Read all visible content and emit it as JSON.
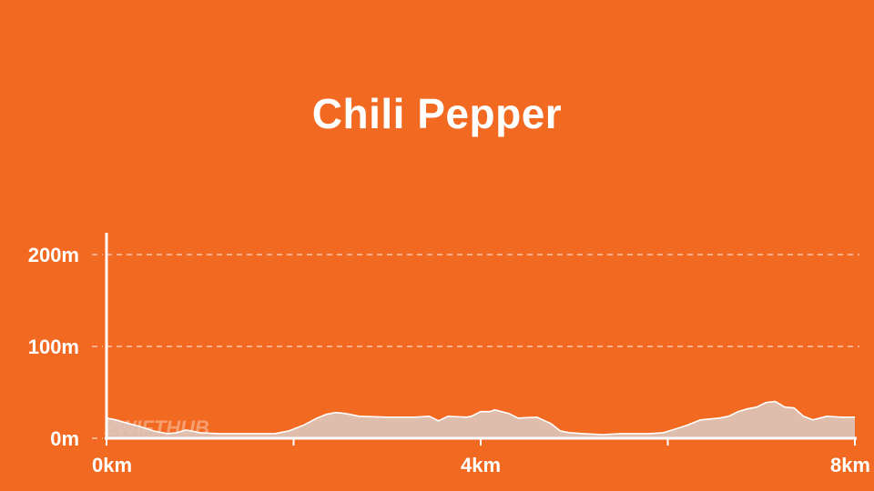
{
  "title": "Chili Pepper",
  "watermark": "ZWIFTHUB",
  "colors": {
    "background": "#f26a22",
    "axis": "#ffffff",
    "grid": "#ffd9c4",
    "area_fill": "#ddc4b9",
    "area_stroke": "#ffffff"
  },
  "chart_data": {
    "type": "area",
    "title": "Chili Pepper",
    "xlabel": "",
    "ylabel": "",
    "x_unit": "km",
    "y_unit": "m",
    "xlim": [
      0,
      8
    ],
    "ylim": [
      0,
      210
    ],
    "grid": true,
    "x_ticks": [
      {
        "value": 0,
        "label": "0km"
      },
      {
        "value": 4,
        "label": "4km"
      },
      {
        "value": 8,
        "label": "8km"
      }
    ],
    "x_minor_ticks": [
      2,
      6
    ],
    "y_ticks": [
      {
        "value": 0,
        "label": "0m"
      },
      {
        "value": 100,
        "label": "100m"
      },
      {
        "value": 200,
        "label": "200m"
      }
    ],
    "series": [
      {
        "x": [
          0,
          0.1,
          0.2,
          0.35,
          0.5,
          0.65,
          0.75,
          0.85,
          0.9,
          1.0,
          1.2,
          1.5,
          1.8,
          1.95,
          2.1,
          2.25,
          2.35,
          2.45,
          2.55,
          2.7,
          3.0,
          3.3,
          3.45,
          3.55,
          3.65,
          3.85,
          3.9,
          4.0,
          4.1,
          4.15,
          4.3,
          4.4,
          4.6,
          4.75,
          4.85,
          4.95,
          5.1,
          5.3,
          5.5,
          5.8,
          5.95,
          6.05,
          6.2,
          6.35,
          6.55,
          6.65,
          6.75,
          6.85,
          6.95,
          7.05,
          7.15,
          7.25,
          7.35,
          7.45,
          7.55,
          7.7,
          7.85,
          8.0
        ],
        "y": [
          22,
          20,
          17,
          13,
          8,
          5,
          6,
          9,
          8,
          6,
          5,
          5,
          5,
          8,
          14,
          22,
          26,
          28,
          27,
          24,
          23,
          23,
          24,
          19,
          24,
          23,
          24,
          29,
          29,
          31,
          27,
          22,
          23,
          16,
          8,
          6,
          5,
          4,
          5,
          5,
          6,
          9,
          14,
          20,
          22,
          24,
          29,
          32,
          34,
          39,
          40,
          34,
          33,
          24,
          20,
          24,
          23,
          23
        ]
      }
    ]
  }
}
